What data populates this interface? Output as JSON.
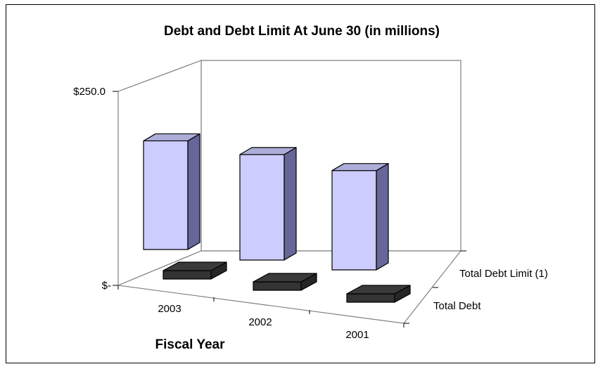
{
  "chart_data": {
    "type": "bar",
    "title": "Debt and Debt Limit At June 30 (in millions)",
    "xlabel": "Fiscal Year",
    "ylabel": "",
    "categories": [
      "2003",
      "2002",
      "2001"
    ],
    "depth_categories": [
      "Total Debt Limit (1)",
      "Total Debt"
    ],
    "y_tick_labels": [
      "$250.0",
      "$-"
    ],
    "ylim": [
      0,
      250
    ],
    "series": [
      {
        "name": "Total Debt",
        "values": [
          8,
          8,
          7
        ],
        "color": "#333333"
      },
      {
        "name": "Total Debt Limit (1)",
        "values": [
          140,
          136,
          128
        ],
        "color": "#ccccff"
      }
    ],
    "grid": false,
    "style": "3d-column"
  }
}
